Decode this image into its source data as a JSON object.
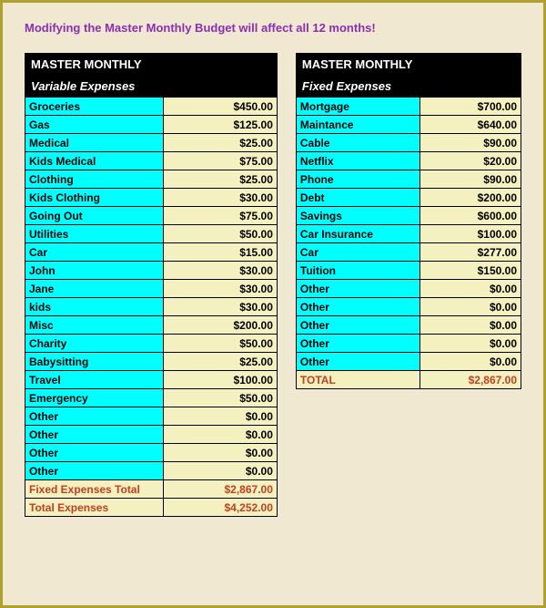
{
  "warning_text": "Modifying the Master Monthly Budget will affect all 12 months!",
  "left_table": {
    "title": "MASTER MONTHLY",
    "subtitle": "Variable Expenses",
    "rows": [
      {
        "label": "Groceries",
        "value": "$450.00"
      },
      {
        "label": "Gas",
        "value": "$125.00"
      },
      {
        "label": "Medical",
        "value": "$25.00"
      },
      {
        "label": "Kids Medical",
        "value": "$75.00"
      },
      {
        "label": "Clothing",
        "value": "$25.00"
      },
      {
        "label": "Kids Clothing",
        "value": "$30.00"
      },
      {
        "label": "Going Out",
        "value": "$75.00"
      },
      {
        "label": "Utilities",
        "value": "$50.00"
      },
      {
        "label": "Car",
        "value": "$15.00"
      },
      {
        "label": "John",
        "value": "$30.00"
      },
      {
        "label": "Jane",
        "value": "$30.00"
      },
      {
        "label": "kids",
        "value": "$30.00"
      },
      {
        "label": "Misc",
        "value": "$200.00"
      },
      {
        "label": "Charity",
        "value": "$50.00"
      },
      {
        "label": "Babysitting",
        "value": "$25.00"
      },
      {
        "label": "Travel",
        "value": "$100.00"
      },
      {
        "label": "Emergency",
        "value": "$50.00"
      },
      {
        "label": "Other",
        "value": "$0.00"
      },
      {
        "label": "Other",
        "value": "$0.00"
      },
      {
        "label": "Other",
        "value": "$0.00"
      },
      {
        "label": "Other",
        "value": "$0.00"
      }
    ],
    "summary": [
      {
        "label": "Fixed Expenses Total",
        "value": "$2,867.00"
      },
      {
        "label": "Total Expenses",
        "value": "$4,252.00"
      }
    ]
  },
  "right_table": {
    "title": "MASTER MONTHLY",
    "subtitle": "Fixed Expenses",
    "rows": [
      {
        "label": "Mortgage",
        "value": "$700.00"
      },
      {
        "label": "Maintance",
        "value": "$640.00"
      },
      {
        "label": "Cable",
        "value": "$90.00"
      },
      {
        "label": "Netflix",
        "value": "$20.00"
      },
      {
        "label": "Phone",
        "value": "$90.00"
      },
      {
        "label": "Debt",
        "value": "$200.00"
      },
      {
        "label": "Savings",
        "value": "$600.00"
      },
      {
        "label": "Car Insurance",
        "value": "$100.00"
      },
      {
        "label": "Car",
        "value": "$277.00"
      },
      {
        "label": "Tuition",
        "value": "$150.00"
      },
      {
        "label": "Other",
        "value": "$0.00"
      },
      {
        "label": "Other",
        "value": "$0.00"
      },
      {
        "label": "Other",
        "value": "$0.00"
      },
      {
        "label": "Other",
        "value": "$0.00"
      },
      {
        "label": "Other",
        "value": "$0.00"
      }
    ],
    "summary": [
      {
        "label": "TOTAL",
        "value": "$2,867.00"
      }
    ]
  }
}
